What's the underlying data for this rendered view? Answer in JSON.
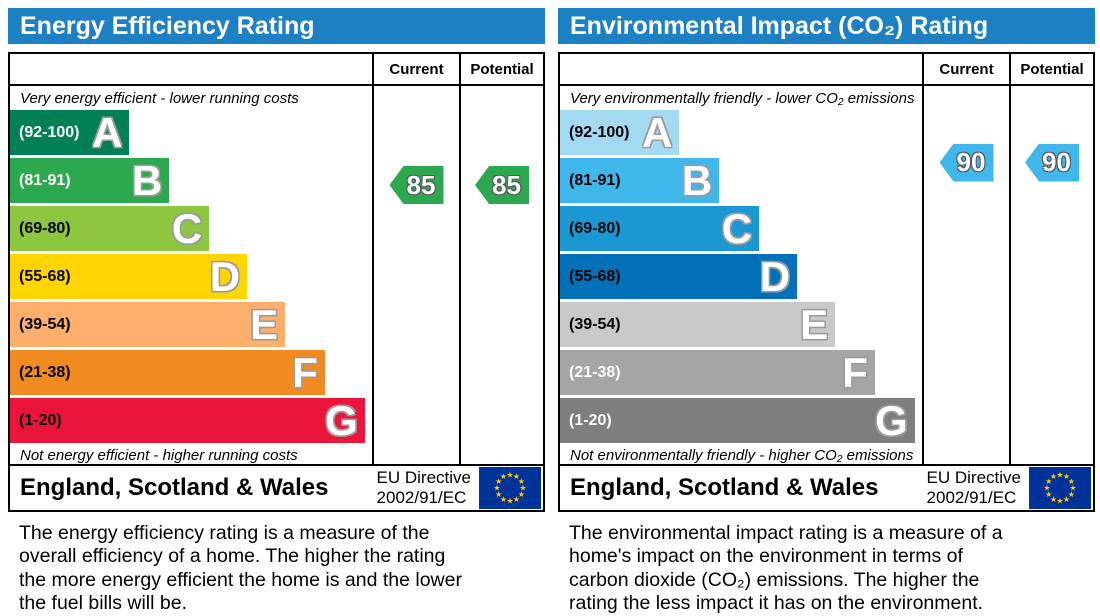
{
  "styles": {
    "header_bg": "#1d80c3",
    "eu_flag_bg": "#003399",
    "eu_star_color": "#ffcc00",
    "energy_arrow_color": "#2ca94e",
    "environmental_arrow_color": "#40b7ea"
  },
  "chart_data": [
    {
      "type": "bar",
      "title": "Energy Efficiency Rating",
      "columns": {
        "current_label": "Current",
        "potential_label": "Potential"
      },
      "top_caption": "Very energy efficient - lower running costs",
      "bottom_caption": "Not energy efficient - higher running costs",
      "bands": [
        {
          "letter": "A",
          "label": "(92-100)",
          "min": 92,
          "max": 100,
          "color": "#008054",
          "label_color": "#ffffff",
          "width_pct": 33
        },
        {
          "letter": "B",
          "label": "(81-91)",
          "min": 81,
          "max": 91,
          "color": "#2ca94e",
          "label_color": "#ffffff",
          "width_pct": 44
        },
        {
          "letter": "C",
          "label": "(69-80)",
          "min": 69,
          "max": 80,
          "color": "#8dc63f",
          "label_color": "#000000",
          "width_pct": 55
        },
        {
          "letter": "D",
          "label": "(55-68)",
          "min": 55,
          "max": 68,
          "color": "#ffd500",
          "label_color": "#000000",
          "width_pct": 65.5
        },
        {
          "letter": "E",
          "label": "(39-54)",
          "min": 39,
          "max": 54,
          "color": "#fbaf6a",
          "label_color": "#000000",
          "width_pct": 76
        },
        {
          "letter": "F",
          "label": "(21-38)",
          "min": 21,
          "max": 38,
          "color": "#f18a21",
          "label_color": "#000000",
          "width_pct": 87
        },
        {
          "letter": "G",
          "label": "(1-20)",
          "min": 1,
          "max": 20,
          "color": "#e9153b",
          "label_color": "#000000",
          "width_pct": 98
        }
      ],
      "current": {
        "value": 85,
        "band": "B",
        "color": "#2ca94e"
      },
      "potential": {
        "value": 85,
        "band": "B",
        "color": "#2ca94e"
      },
      "footer_region": "England, Scotland & Wales",
      "eu_directive": [
        "EU Directive",
        "2002/91/EC"
      ],
      "description": "The energy efficiency rating is a measure of the overall efficiency of a home. The higher the rating the more energy efficient the home is and the lower the fuel bills will be."
    },
    {
      "type": "bar",
      "title": "Environmental Impact (CO₂) Rating",
      "columns": {
        "current_label": "Current",
        "potential_label": "Potential"
      },
      "top_caption": "Very environmentally friendly - lower CO₂ emissions",
      "bottom_caption": "Not environmentally friendly - higher CO₂ emissions",
      "bands": [
        {
          "letter": "A",
          "label": "(92-100)",
          "min": 92,
          "max": 100,
          "color": "#a3d9f1",
          "label_color": "#000000",
          "width_pct": 33
        },
        {
          "letter": "B",
          "label": "(81-91)",
          "min": 81,
          "max": 91,
          "color": "#40b7ea",
          "label_color": "#000000",
          "width_pct": 44
        },
        {
          "letter": "C",
          "label": "(69-80)",
          "min": 69,
          "max": 80,
          "color": "#1b98d4",
          "label_color": "#000000",
          "width_pct": 55
        },
        {
          "letter": "D",
          "label": "(55-68)",
          "min": 55,
          "max": 68,
          "color": "#0371b9",
          "label_color": "#000000",
          "width_pct": 65.5
        },
        {
          "letter": "E",
          "label": "(39-54)",
          "min": 39,
          "max": 54,
          "color": "#c9c9c9",
          "label_color": "#000000",
          "width_pct": 76
        },
        {
          "letter": "F",
          "label": "(21-38)",
          "min": 21,
          "max": 38,
          "color": "#a5a5a5",
          "label_color": "#ffffff",
          "width_pct": 87
        },
        {
          "letter": "G",
          "label": "(1-20)",
          "min": 1,
          "max": 20,
          "color": "#7e7e7e",
          "label_color": "#ffffff",
          "width_pct": 98
        }
      ],
      "current": {
        "value": 90,
        "band": "B",
        "color": "#40b7ea"
      },
      "potential": {
        "value": 90,
        "band": "B",
        "color": "#40b7ea"
      },
      "footer_region": "England, Scotland & Wales",
      "eu_directive": [
        "EU Directive",
        "2002/91/EC"
      ],
      "description": "The environmental impact rating is a measure of a home's impact on the environment in terms of carbon dioxide (CO₂) emissions. The higher the rating the less impact it has on the environment."
    }
  ]
}
